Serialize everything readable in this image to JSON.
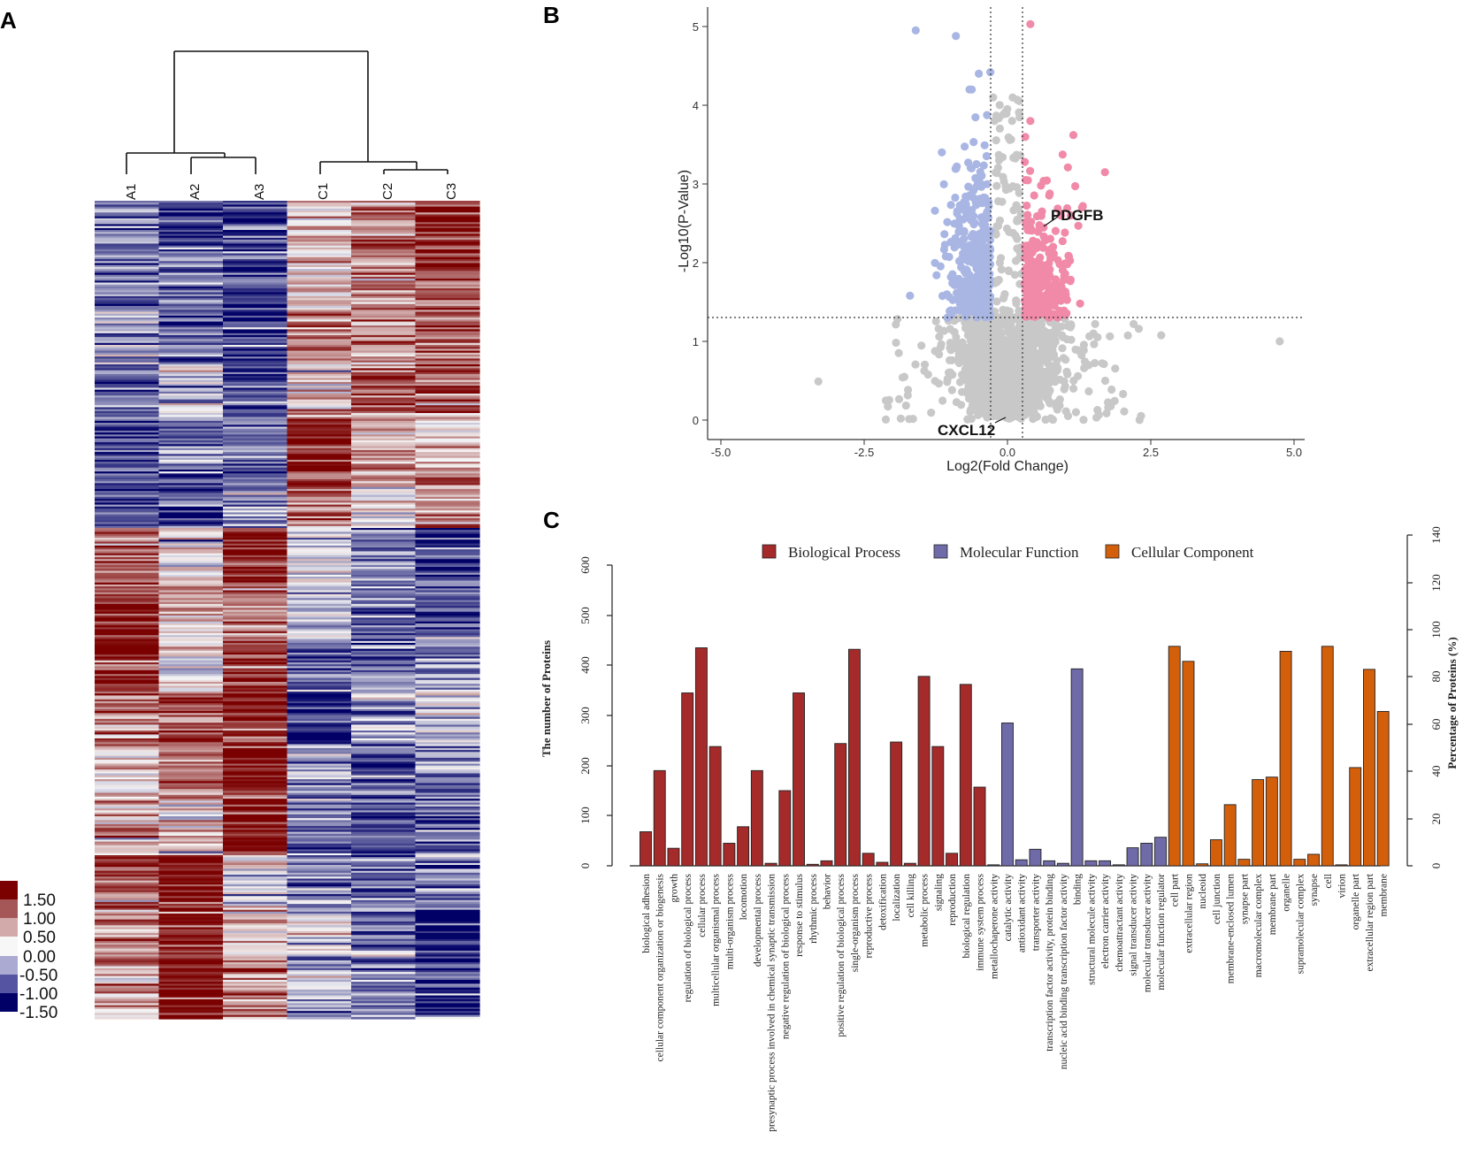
{
  "colors": {
    "dark_red": "#7b0000",
    "white": "#f7f7f7",
    "navy": "#000066",
    "up_point": "#f08aa8",
    "down_point": "#a9b6e4",
    "ns_point": "#c8c8c8",
    "bio": "#a52a2a",
    "mol": "#6f6aa8",
    "cell": "#d45f0b"
  },
  "chart_data": [
    {
      "panel_label": "A",
      "type": "heatmap",
      "samples": [
        "A1",
        "A2",
        "A3",
        "C1",
        "C2",
        "C3"
      ],
      "legend": {
        "labels": [
          "1.50",
          "1.00",
          "0.50",
          "0.00",
          "-0.50",
          "-1.00",
          "-1.50"
        ],
        "colors": [
          "#7b0000",
          "#a55757",
          "#d2aaaa",
          "#f7f7f7",
          "#aaaad2",
          "#5454a3",
          "#000066"
        ]
      },
      "row_blocks": [
        [
          -0.7,
          -1.2,
          -1.0,
          0.2,
          0.8,
          1.3
        ],
        [
          -0.8,
          -0.7,
          -1.1,
          0.3,
          0.6,
          1.0
        ],
        [
          -0.5,
          -0.9,
          -1.2,
          0.9,
          0.5,
          0.9
        ],
        [
          -0.9,
          -0.3,
          -1.0,
          0.4,
          1.0,
          0.8
        ],
        [
          -1.2,
          -0.8,
          -0.8,
          1.3,
          0.6,
          0.2
        ],
        [
          -1.0,
          -1.0,
          -0.6,
          0.8,
          0.3,
          0.7
        ],
        [
          0.8,
          0.3,
          1.3,
          -0.4,
          -0.8,
          -1.2
        ],
        [
          1.4,
          0.4,
          0.7,
          -0.3,
          -0.9,
          -1.0
        ],
        [
          1.3,
          0.1,
          1.1,
          -0.9,
          -0.7,
          -0.6
        ],
        [
          0.7,
          1.0,
          1.0,
          -1.3,
          -0.6,
          -0.3
        ],
        [
          0.2,
          0.8,
          1.4,
          -0.7,
          -0.9,
          -0.8
        ],
        [
          0.5,
          0.3,
          1.3,
          -0.8,
          -1.0,
          -0.9
        ],
        [
          1.1,
          1.4,
          0.0,
          -0.6,
          -0.8,
          -0.9
        ],
        [
          0.6,
          1.2,
          0.4,
          -0.2,
          -0.8,
          -1.3
        ],
        [
          0.4,
          1.5,
          0.6,
          -0.4,
          -0.7,
          -1.2
        ]
      ]
    },
    {
      "panel_label": "B",
      "type": "scatter",
      "xlabel": "Log2(Fold Change)",
      "ylabel": "-Log10(P-Value)",
      "xlim": [
        -5.0,
        5.0
      ],
      "ylim": [
        0,
        5
      ],
      "x_ticks": [
        "-5.0",
        "-2.5",
        "0.0",
        "2.5",
        "5.0"
      ],
      "y_ticks": [
        "0",
        "1",
        "2",
        "3",
        "4",
        "5"
      ],
      "thresholds": {
        "fc_left": -0.26,
        "fc_right": 0.26,
        "p": 1.3
      },
      "labels": [
        {
          "text": "PDGFB",
          "x": 0.85,
          "y": 2.4
        },
        {
          "text": "CXCL12",
          "x": 0.0,
          "y": 0.05
        }
      ],
      "highlight_points": [
        {
          "x": -1.6,
          "y": 4.95,
          "group": "down"
        },
        {
          "x": -0.9,
          "y": 4.88,
          "group": "down"
        },
        {
          "x": 0.4,
          "y": 5.03,
          "group": "up"
        },
        {
          "x": -0.5,
          "y": 4.4,
          "group": "down"
        },
        {
          "x": -0.3,
          "y": 4.42,
          "group": "down"
        },
        {
          "x": -0.25,
          "y": 4.1,
          "group": "ns"
        },
        {
          "x": 0.4,
          "y": 3.8,
          "group": "up"
        },
        {
          "x": 1.7,
          "y": 3.15,
          "group": "up"
        },
        {
          "x": 1.3,
          "y": 2.7,
          "group": "up"
        },
        {
          "x": -1.7,
          "y": 1.58,
          "group": "down"
        },
        {
          "x": -3.3,
          "y": 0.49,
          "group": "ns"
        },
        {
          "x": 4.75,
          "y": 1.0,
          "group": "ns"
        },
        {
          "x": 2.2,
          "y": 1.22,
          "group": "ns"
        },
        {
          "x": -1.8,
          "y": 0.55,
          "group": "ns"
        },
        {
          "x": 1.5,
          "y": 1.1,
          "group": "ns"
        }
      ]
    },
    {
      "panel_label": "C",
      "type": "bar",
      "ylabel": "The number of Proteins",
      "y2label": "Percentage of Proteins (%)",
      "ylim": [
        0,
        600
      ],
      "y_ticks": [
        "0",
        "100",
        "200",
        "300",
        "400",
        "500",
        "600"
      ],
      "y2lim": [
        0,
        140
      ],
      "y2_ticks": [
        "0",
        "20",
        "40",
        "60",
        "80",
        "100",
        "120",
        "140"
      ],
      "legend": [
        "Biological Process",
        "Molecular Function",
        "Cellular Component"
      ],
      "categories": [
        "biological adhesion",
        "cellular component organization or biogenesis",
        "growth",
        "regulation of biological process",
        "cellular process",
        "multicellular organismal process",
        "multi-organism process",
        "locomotion",
        "developmental process",
        "presynaptic process involved in chemical synaptic transmission",
        "negative regulation of biological process",
        "response to stimulus",
        "rhythmic process",
        "behavior",
        "positive regulation of biological process",
        "single-organism process",
        "reproductive process",
        "detoxification",
        "localization",
        "cell killing",
        "metabolic process",
        "signaling",
        "reproduction",
        "biological regulation",
        "immune system process",
        "metallochaperone activity",
        "catalytic activity",
        "antioxidant activity",
        "transporter activity",
        "transcription factor activity, protein binding",
        "nucleic acid binding transcription factor activity",
        "binding",
        "structural molecule activity",
        "electron carrier activity",
        "chemoattractant activity",
        "signal transducer activity",
        "molecular transducer activity",
        "molecular function regulator",
        "cell part",
        "extracellular region",
        "nucleoid",
        "cell junction",
        "membrane-enclosed lumen",
        "synapse part",
        "macromolecular complex",
        "membrane part",
        "organelle",
        "supramolecular complex",
        "synapse",
        "cell",
        "virion",
        "organelle part",
        "extracellular region part",
        "membrane"
      ],
      "groups": [
        "bio",
        "bio",
        "bio",
        "bio",
        "bio",
        "bio",
        "bio",
        "bio",
        "bio",
        "bio",
        "bio",
        "bio",
        "bio",
        "bio",
        "bio",
        "bio",
        "bio",
        "bio",
        "bio",
        "bio",
        "bio",
        "bio",
        "bio",
        "bio",
        "bio",
        "mol",
        "mol",
        "mol",
        "mol",
        "mol",
        "mol",
        "mol",
        "mol",
        "mol",
        "mol",
        "mol",
        "mol",
        "mol",
        "cell",
        "cell",
        "cell",
        "cell",
        "cell",
        "cell",
        "cell",
        "cell",
        "cell",
        "cell",
        "cell",
        "cell",
        "cell",
        "cell",
        "cell",
        "cell"
      ],
      "values": [
        68,
        190,
        35,
        345,
        435,
        238,
        45,
        78,
        190,
        5,
        150,
        345,
        3,
        10,
        244,
        432,
        25,
        7,
        247,
        5,
        378,
        238,
        25,
        362,
        157,
        2,
        285,
        12,
        33,
        10,
        5,
        393,
        10,
        10,
        2,
        36,
        45,
        57,
        438,
        408,
        4,
        52,
        122,
        13,
        172,
        177,
        428,
        13,
        23,
        438,
        2,
        196,
        392,
        308
      ]
    }
  ]
}
